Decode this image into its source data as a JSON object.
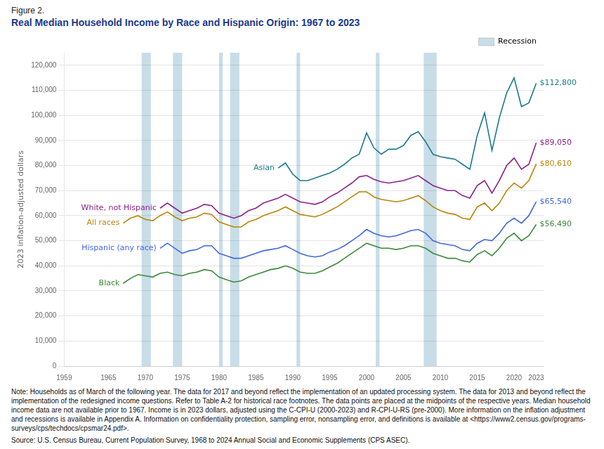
{
  "chart_data": {
    "type": "line",
    "title": "Figure 2.",
    "subtitle": "Real Median Household Income by Race and Hispanic Origin: 1967 to 2023",
    "y_label": "2023 inflation-adjusted dollars",
    "note": "Note: Households as of March of the following year. The data for 2017 and beyond reflect the implementation of an updated processing system. The data for 2013 and beyond reflect the implementation of the redesigned income questions. Refer to Table A-2 for historical race footnotes. The data points are placed at the midpoints of the respective years. Median household income data are not available prior to 1967. Income is in 2023 dollars, adjusted using the C-CPI-U (2000-2023) and R-CPI-U-RS (pre-2000). More information on the inflation adjustment and recessions is available in Appendix A. Information on confidentiality protection, sampling error, nonsampling error, and definitions is available at <https://www2.census.gov/programs-surveys/cps/techdocs/cpsmar24.pdf>.",
    "source": "Source: U.S. Census Bureau, Current Population Survey, 1968 to 2024 Annual Social and Economic Supplements (CPS ASEC).",
    "recessions": {
      "name": "Recession",
      "color": "#C8DDE8",
      "periods": [
        [
          1969.5,
          1970.75
        ],
        [
          1973.75,
          1975.0
        ],
        [
          1980.0,
          1980.5
        ],
        [
          1981.5,
          1982.75
        ],
        [
          1990.5,
          1991.0
        ],
        [
          2001.25,
          2001.75
        ],
        [
          2007.75,
          2009.5
        ]
      ]
    },
    "legend": "upper right",
    "grid": true,
    "series": [
      {
        "name": "Asian",
        "color": "#1B7A8A",
        "x": [
          1988,
          1989,
          1990,
          1991,
          1992,
          1993,
          1994,
          1995,
          1996,
          1997,
          1998,
          1999,
          2000,
          2001,
          2002,
          2003,
          2004,
          2005,
          2006,
          2007,
          2008,
          2009,
          2010,
          2011,
          2012,
          2013,
          2014,
          2015,
          2016,
          2017,
          2018,
          2019,
          2020,
          2021,
          2022,
          2023
        ],
        "values": [
          79000,
          81000,
          76500,
          74000,
          74000,
          75000,
          76000,
          77000,
          78500,
          80500,
          83000,
          84500,
          93000,
          87000,
          84500,
          86500,
          86500,
          88000,
          92000,
          93500,
          89500,
          84500,
          83500,
          83000,
          82500,
          80500,
          78500,
          92000,
          101000,
          86000,
          99000,
          109000,
          115000,
          103500,
          105000,
          112800
        ]
      },
      {
        "name": "White, not Hispanic",
        "color": "#8B2288",
        "x": [
          1972,
          1973,
          1974,
          1975,
          1976,
          1977,
          1978,
          1979,
          1980,
          1981,
          1982,
          1983,
          1984,
          1985,
          1986,
          1987,
          1988,
          1989,
          1990,
          1991,
          1992,
          1993,
          1994,
          1995,
          1996,
          1997,
          1998,
          1999,
          2000,
          2001,
          2002,
          2003,
          2004,
          2005,
          2006,
          2007,
          2008,
          2009,
          2010,
          2011,
          2012,
          2013,
          2014,
          2015,
          2016,
          2017,
          2018,
          2019,
          2020,
          2021,
          2022,
          2023
        ],
        "values": [
          63000,
          65000,
          63000,
          61000,
          62000,
          63000,
          64500,
          64000,
          61000,
          60000,
          59000,
          60000,
          62000,
          63000,
          65000,
          66000,
          67000,
          68500,
          67000,
          65500,
          65000,
          64500,
          65500,
          67500,
          69000,
          71000,
          73000,
          75500,
          76000,
          74500,
          73500,
          73000,
          73500,
          74000,
          75000,
          76000,
          74000,
          72000,
          71000,
          70000,
          70000,
          68000,
          67000,
          72000,
          74000,
          69000,
          74000,
          80000,
          83000,
          78500,
          80500,
          89050
        ]
      },
      {
        "name": "All races",
        "color": "#B8860B",
        "x": [
          1967,
          1968,
          1969,
          1970,
          1971,
          1972,
          1973,
          1974,
          1975,
          1976,
          1977,
          1978,
          1979,
          1980,
          1981,
          1982,
          1983,
          1984,
          1985,
          1986,
          1987,
          1988,
          1989,
          1990,
          1991,
          1992,
          1993,
          1994,
          1995,
          1996,
          1997,
          1998,
          1999,
          2000,
          2001,
          2002,
          2003,
          2004,
          2005,
          2006,
          2007,
          2008,
          2009,
          2010,
          2011,
          2012,
          2013,
          2014,
          2015,
          2016,
          2017,
          2018,
          2019,
          2020,
          2021,
          2022,
          2023
        ],
        "values": [
          57000,
          59000,
          60000,
          58500,
          58000,
          60000,
          61500,
          59500,
          58000,
          59000,
          59500,
          61000,
          60500,
          57500,
          56500,
          55500,
          55500,
          57500,
          58500,
          60000,
          61000,
          62000,
          63500,
          62000,
          60500,
          60000,
          59500,
          60500,
          62000,
          63500,
          65500,
          67500,
          69500,
          69500,
          67500,
          66500,
          66000,
          65500,
          66000,
          67000,
          68000,
          66000,
          63500,
          62000,
          61000,
          60500,
          59000,
          58500,
          63500,
          65000,
          62000,
          65000,
          70000,
          73000,
          71000,
          74000,
          80610
        ]
      },
      {
        "name": "Hispanic (any race)",
        "color": "#4169E1",
        "x": [
          1972,
          1973,
          1974,
          1975,
          1976,
          1977,
          1978,
          1979,
          1980,
          1981,
          1982,
          1983,
          1984,
          1985,
          1986,
          1987,
          1988,
          1989,
          1990,
          1991,
          1992,
          1993,
          1994,
          1995,
          1996,
          1997,
          1998,
          1999,
          2000,
          2001,
          2002,
          2003,
          2004,
          2005,
          2006,
          2007,
          2008,
          2009,
          2010,
          2011,
          2012,
          2013,
          2014,
          2015,
          2016,
          2017,
          2018,
          2019,
          2020,
          2021,
          2022,
          2023
        ],
        "values": [
          47000,
          49000,
          47000,
          45000,
          46000,
          46500,
          48000,
          48000,
          45000,
          44000,
          43000,
          43000,
          44000,
          45000,
          46000,
          46500,
          47000,
          48000,
          46500,
          45000,
          44000,
          43500,
          44000,
          45500,
          46500,
          48000,
          50000,
          52000,
          54500,
          53000,
          52000,
          51500,
          52000,
          53000,
          54000,
          54500,
          53000,
          50000,
          49000,
          48500,
          48000,
          46500,
          46000,
          49000,
          50500,
          50000,
          53000,
          57000,
          59000,
          57000,
          60000,
          65540
        ]
      },
      {
        "name": "Black",
        "color": "#3B8A3B",
        "x": [
          1967,
          1968,
          1969,
          1970,
          1971,
          1972,
          1973,
          1974,
          1975,
          1976,
          1977,
          1978,
          1979,
          1980,
          1981,
          1982,
          1983,
          1984,
          1985,
          1986,
          1987,
          1988,
          1989,
          1990,
          1991,
          1992,
          1993,
          1994,
          1995,
          1996,
          1997,
          1998,
          1999,
          2000,
          2001,
          2002,
          2003,
          2004,
          2005,
          2006,
          2007,
          2008,
          2009,
          2010,
          2011,
          2012,
          2013,
          2014,
          2015,
          2016,
          2017,
          2018,
          2019,
          2020,
          2021,
          2022,
          2023
        ],
        "values": [
          33000,
          35000,
          36500,
          36000,
          35500,
          37000,
          37500,
          36500,
          36000,
          37000,
          37500,
          38500,
          38000,
          35500,
          34500,
          33500,
          34000,
          35500,
          36500,
          37500,
          38500,
          39000,
          40000,
          39000,
          37500,
          37000,
          37000,
          38000,
          39500,
          41000,
          43000,
          45000,
          47000,
          49000,
          48000,
          47000,
          47000,
          46500,
          47000,
          48000,
          48000,
          47000,
          45000,
          44000,
          43000,
          43000,
          42000,
          41500,
          44500,
          46000,
          44000,
          47000,
          51000,
          53000,
          50000,
          52000,
          56490
        ]
      }
    ],
    "annotations": [
      {
        "text": "$112,800",
        "x": 2023,
        "y": 112800,
        "color": "#1B7A8A"
      },
      {
        "text": "$89,050",
        "x": 2023,
        "y": 89050,
        "color": "#8B2288"
      },
      {
        "text": "$80,610",
        "x": 2023,
        "y": 80610,
        "color": "#B8860B"
      },
      {
        "text": "$65,540",
        "x": 2023,
        "y": 65540,
        "color": "#4169E1"
      },
      {
        "text": "$56,490",
        "x": 2023,
        "y": 56490,
        "color": "#3B8A3B"
      }
    ],
    "xlim": [
      1959,
      2024
    ],
    "xticks": [
      1959,
      1965,
      1970,
      1975,
      1980,
      1985,
      1990,
      1995,
      2000,
      2005,
      2010,
      2015,
      2020,
      2023
    ],
    "ylim": [
      0,
      125000
    ],
    "yticks": [
      0,
      {
        "value": 10000,
        "label": "10,000"
      },
      {
        "value": 20000,
        "label": "20,000"
      },
      {
        "value": 30000,
        "label": "30,000"
      },
      {
        "value": 40000,
        "label": "40,000"
      },
      {
        "value": 50000,
        "label": "50,000"
      },
      {
        "value": 60000,
        "label": "60,000"
      },
      {
        "value": 70000,
        "label": "70,000"
      },
      {
        "value": 80000,
        "label": "80,000"
      },
      {
        "value": 90000,
        "label": "90,000"
      },
      {
        "value": 100000,
        "label": "100,000"
      },
      {
        "value": 110000,
        "label": "110,000"
      },
      {
        "value": 120000,
        "label": "120,000"
      }
    ]
  }
}
